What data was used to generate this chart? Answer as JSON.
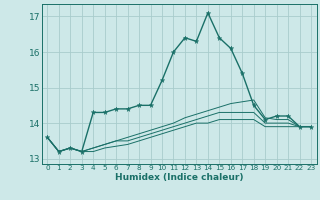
{
  "xlabel": "Humidex (Indice chaleur)",
  "background_color": "#cde8e8",
  "grid_color": "#a8cccc",
  "line_color": "#1a7068",
  "xlim": [
    -0.5,
    23.5
  ],
  "ylim": [
    12.85,
    17.35
  ],
  "yticks": [
    13,
    14,
    15,
    16,
    17
  ],
  "xticks": [
    0,
    1,
    2,
    3,
    4,
    5,
    6,
    7,
    8,
    9,
    10,
    11,
    12,
    13,
    14,
    15,
    16,
    17,
    18,
    19,
    20,
    21,
    22,
    23
  ],
  "series": [
    [
      13.6,
      13.2,
      13.3,
      13.2,
      14.3,
      14.3,
      14.4,
      14.4,
      14.5,
      14.5,
      15.2,
      16.0,
      16.4,
      16.3,
      17.1,
      16.4,
      16.1,
      15.4,
      14.5,
      14.1,
      14.2,
      14.2,
      13.9,
      13.9
    ],
    [
      13.6,
      13.2,
      13.3,
      13.2,
      13.3,
      13.4,
      13.5,
      13.6,
      13.7,
      13.8,
      13.9,
      14.0,
      14.15,
      14.25,
      14.35,
      14.45,
      14.55,
      14.6,
      14.65,
      14.15,
      14.1,
      14.1,
      13.9,
      13.9
    ],
    [
      13.6,
      13.2,
      13.3,
      13.2,
      13.3,
      13.4,
      13.5,
      13.5,
      13.6,
      13.7,
      13.8,
      13.9,
      14.0,
      14.1,
      14.2,
      14.3,
      14.3,
      14.3,
      14.3,
      14.0,
      14.0,
      14.0,
      13.9,
      13.9
    ],
    [
      13.6,
      13.2,
      13.3,
      13.2,
      13.2,
      13.3,
      13.35,
      13.4,
      13.5,
      13.6,
      13.7,
      13.8,
      13.9,
      14.0,
      14.0,
      14.1,
      14.1,
      14.1,
      14.1,
      13.9,
      13.9,
      13.9,
      13.9,
      13.9
    ]
  ]
}
